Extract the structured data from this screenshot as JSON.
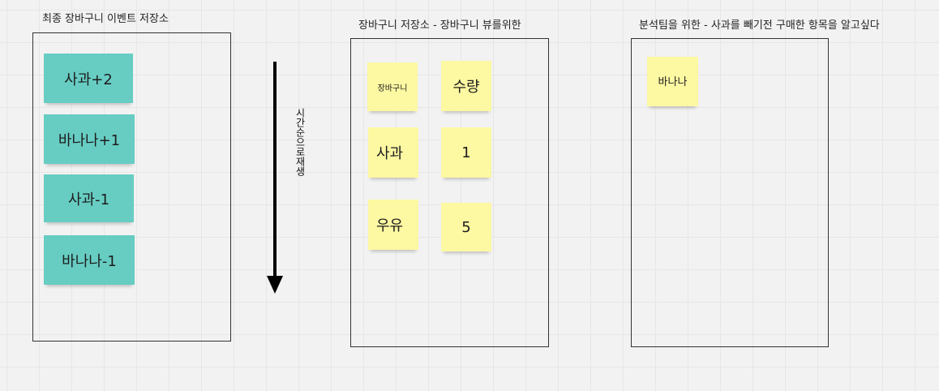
{
  "titles": {
    "event_store": "최종 장바구니 이벤트 저장소",
    "cart_store": "장바구니 저장소 - 장바구니 뷰를위한",
    "analysis": "분석팀을 위한 - 사과를 빼기전 구매한 항목을 알고싶다"
  },
  "events": [
    "사과+2",
    "바나나+1",
    "사과-1",
    "바나나-1"
  ],
  "cart_table": {
    "headers": [
      "장바구니",
      "수량"
    ],
    "rows": [
      [
        "사과",
        "1"
      ],
      [
        "우유",
        "5"
      ]
    ]
  },
  "analysis_items": [
    "바나나"
  ],
  "timeline_label": "시간순으로재생",
  "colors": {
    "event_note": "#67cdc3",
    "state_note": "#fdf8a2"
  }
}
